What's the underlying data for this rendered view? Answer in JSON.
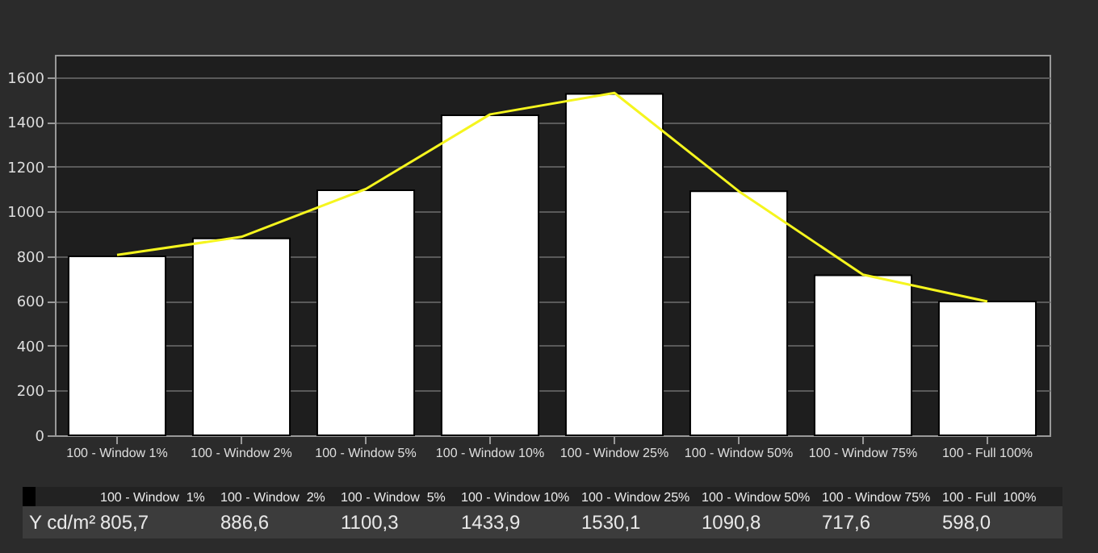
{
  "chart_data": {
    "type": "bar",
    "categories": [
      "100 - Window  1%",
      "100 - Window  2%",
      "100 - Window  5%",
      "100 - Window 10%",
      "100 - Window 25%",
      "100 - Window 50%",
      "100 - Window 75%",
      "100 - Full  100%"
    ],
    "series": [
      {
        "color": "#ffffff",
        "values": [
          800,
          880,
          1095,
          1430,
          1525,
          1090,
          715,
          598
        ]
      },
      {
        "type": "line",
        "name": "Y cd/m²",
        "color": "#f5f51e",
        "values": [
          805.7,
          886.6,
          1100.3,
          1433.9,
          1530.1,
          1090.8,
          717.6,
          598.0
        ],
        "value_labels": [
          "805,7",
          "886,6",
          "1100,3",
          "1433,9",
          "1530,1",
          "1090,8",
          "717,6",
          "598,0"
        ]
      }
    ],
    "ylim": [
      0,
      1700
    ],
    "yticks": [
      0,
      200,
      400,
      600,
      800,
      1000,
      1200,
      1400,
      1600
    ],
    "grid": "y",
    "legend": false,
    "marker": "none"
  }
}
